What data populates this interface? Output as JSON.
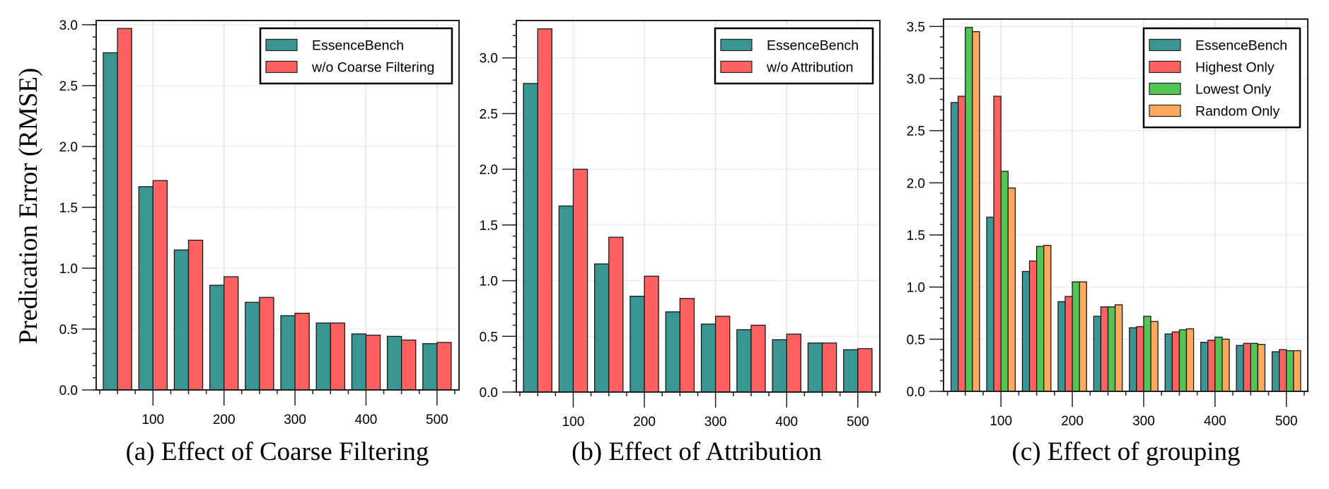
{
  "figure": {
    "ylabel": "Predication Error (RMSE)"
  },
  "chart_data": [
    {
      "type": "bar",
      "title": "(a) Effect of Coarse Filtering",
      "xlabel": "",
      "ylabel": "Predication Error (RMSE)",
      "x": [
        50,
        100,
        150,
        200,
        250,
        300,
        350,
        400,
        450,
        500
      ],
      "xticks": [
        100,
        200,
        300,
        400,
        500
      ],
      "xtick_labels": [
        "100",
        "200",
        "300",
        "400",
        "500"
      ],
      "xminor_step": 25,
      "xlim": [
        20,
        531
      ],
      "ylim": [
        0,
        3.035
      ],
      "yticks": [
        0.0,
        0.5,
        1.0,
        1.5,
        2.0,
        2.5,
        3.0
      ],
      "ytick_labels": [
        "0.0",
        "0.5",
        "1.0",
        "1.5",
        "2.0",
        "2.5",
        "3.0"
      ],
      "yminor_step": 0.1,
      "grid": true,
      "legend_position": "top-right",
      "group_width": 40,
      "series": [
        {
          "name": "EssenceBench",
          "color": "#3a9692",
          "values": [
            2.77,
            1.67,
            1.15,
            0.86,
            0.72,
            0.61,
            0.55,
            0.46,
            0.44,
            0.38
          ]
        },
        {
          "name": "w/o Coarse Filtering",
          "color": "#ff6161",
          "values": [
            2.97,
            1.72,
            1.23,
            0.93,
            0.76,
            0.63,
            0.55,
            0.45,
            0.41,
            0.39
          ]
        }
      ]
    },
    {
      "type": "bar",
      "title": "(b) Effect of Attribution",
      "xlabel": "",
      "ylabel": "",
      "x": [
        50,
        100,
        150,
        200,
        250,
        300,
        350,
        400,
        450,
        500
      ],
      "xticks": [
        100,
        200,
        300,
        400,
        500
      ],
      "xtick_labels": [
        "100",
        "200",
        "300",
        "400",
        "500"
      ],
      "xminor_step": 25,
      "xlim": [
        20,
        531
      ],
      "ylim": [
        0,
        3.335
      ],
      "yticks": [
        0.0,
        0.5,
        1.0,
        1.5,
        2.0,
        2.5,
        3.0
      ],
      "ytick_labels": [
        "0.0",
        "0.5",
        "1.0",
        "1.5",
        "2.0",
        "2.5",
        "3.0"
      ],
      "yminor_step": 0.1,
      "grid": true,
      "legend_position": "top-right",
      "group_width": 40,
      "series": [
        {
          "name": "EssenceBench",
          "color": "#3a9692",
          "values": [
            2.77,
            1.67,
            1.15,
            0.86,
            0.72,
            0.61,
            0.56,
            0.47,
            0.44,
            0.38
          ]
        },
        {
          "name": "w/o Attribution",
          "color": "#ff6161",
          "values": [
            3.26,
            2.0,
            1.39,
            1.04,
            0.84,
            0.68,
            0.6,
            0.52,
            0.44,
            0.39
          ]
        }
      ]
    },
    {
      "type": "bar",
      "title": "(c) Effect of grouping",
      "xlabel": "",
      "ylabel": "",
      "x": [
        50,
        100,
        150,
        200,
        250,
        300,
        350,
        400,
        450,
        500
      ],
      "xticks": [
        100,
        200,
        300,
        400,
        500
      ],
      "xtick_labels": [
        "100",
        "200",
        "300",
        "400",
        "500"
      ],
      "xminor_step": 25,
      "xlim": [
        19.5,
        530
      ],
      "ylim": [
        0,
        3.57
      ],
      "yticks": [
        0.0,
        0.5,
        1.0,
        1.5,
        2.0,
        2.5,
        3.0,
        3.5
      ],
      "ytick_labels": [
        "0.0",
        "0.5",
        "1.0",
        "1.5",
        "2.0",
        "2.5",
        "3.0",
        "3.5"
      ],
      "yminor_step": 0.1,
      "grid": true,
      "legend_position": "top-right",
      "group_width": 40,
      "series": [
        {
          "name": "EssenceBench",
          "color": "#3a9692",
          "values": [
            2.77,
            1.67,
            1.15,
            0.86,
            0.72,
            0.61,
            0.55,
            0.47,
            0.44,
            0.38
          ]
        },
        {
          "name": "Highest Only",
          "color": "#ff6161",
          "values": [
            2.83,
            2.83,
            1.25,
            0.91,
            0.81,
            0.62,
            0.57,
            0.49,
            0.46,
            0.4
          ]
        },
        {
          "name": "Lowest Only",
          "color": "#52c552",
          "values": [
            3.49,
            2.11,
            1.39,
            1.05,
            0.81,
            0.72,
            0.59,
            0.52,
            0.46,
            0.39
          ]
        },
        {
          "name": "Random Only",
          "color": "#ffa95f",
          "values": [
            3.45,
            1.95,
            1.4,
            1.05,
            0.83,
            0.67,
            0.6,
            0.5,
            0.45,
            0.39
          ]
        }
      ]
    }
  ]
}
